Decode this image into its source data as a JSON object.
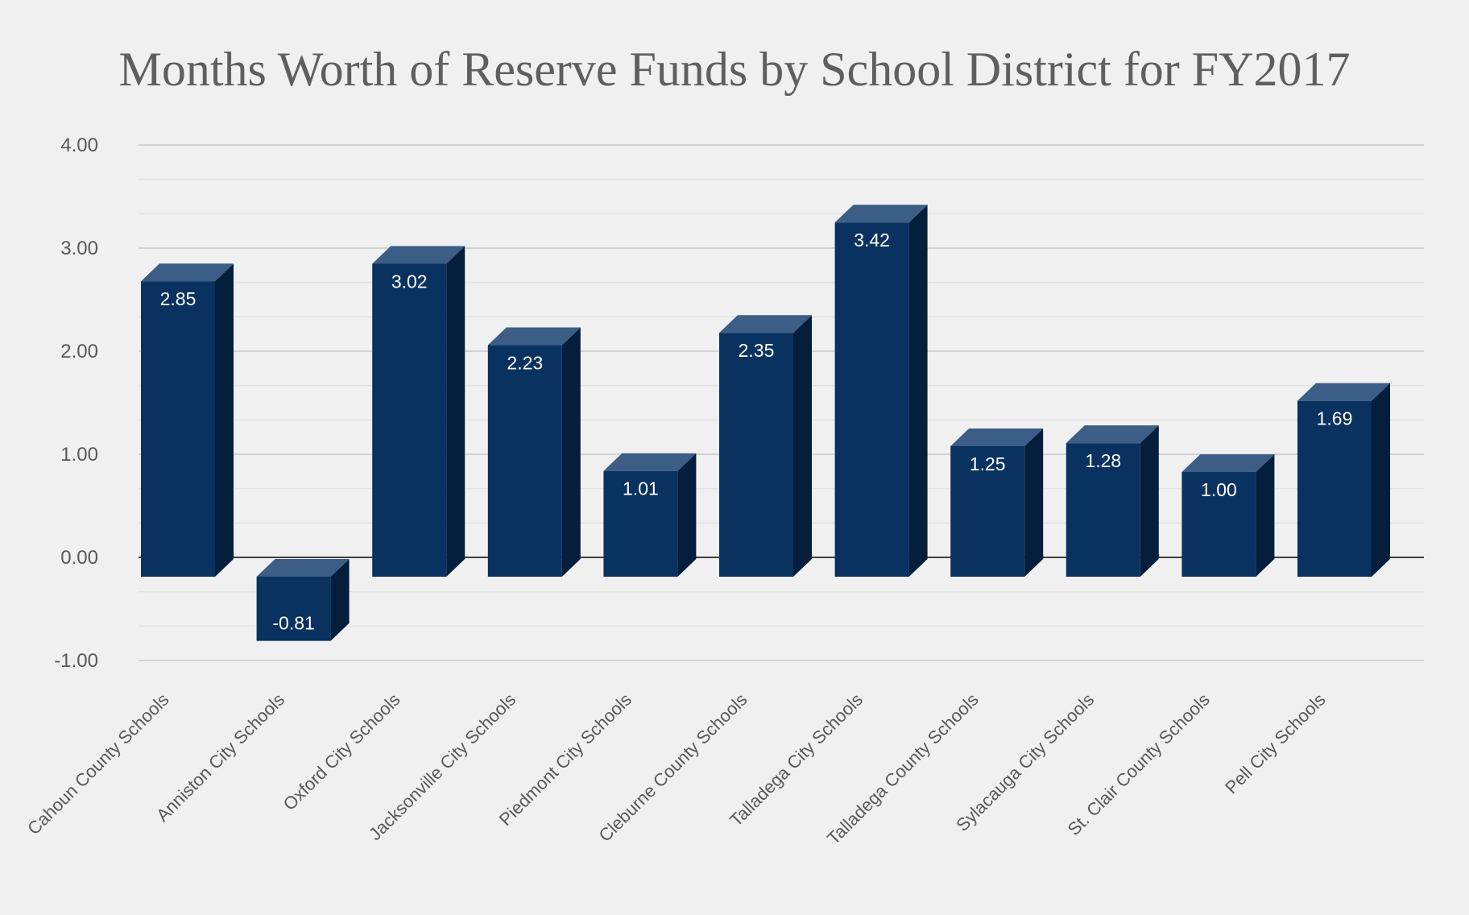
{
  "chart_data": {
    "type": "bar",
    "title": "Months Worth of Reserve Funds by School District for FY2017",
    "categories": [
      "Cahoun County Schools",
      "Anniston City Schools",
      "Oxford City Schools",
      "Jacksonville City Schools",
      "Piedmont City Schools",
      "Cleburne County Schools",
      "Talladega City Schools",
      "Talladega County Schools",
      "Sylacauga City Schools",
      "St. Clair  County Schools",
      "Pell City Schools"
    ],
    "values": [
      2.85,
      -0.81,
      3.02,
      2.23,
      1.01,
      2.35,
      3.42,
      1.25,
      1.28,
      1.0,
      1.69
    ],
    "data_labels": [
      "2.85",
      "-0.81",
      "3.02",
      "2.23",
      "1.01",
      "2.35",
      "3.42",
      "1.25",
      "1.28",
      "1.00",
      "1.69"
    ],
    "ylim": [
      -1,
      4
    ],
    "yticks": [
      4,
      3,
      2,
      1,
      0,
      -1
    ],
    "ytick_labels": [
      "4.00",
      "3.00",
      "2.00",
      "1.00",
      "0.00",
      "-1.00"
    ],
    "xlabel": "",
    "ylabel": "",
    "grid": true,
    "legend": "none",
    "bar_style": "3d",
    "colors": {
      "bar_front": "#0a3260",
      "bar_top": "#3b5d86",
      "bar_side": "#051e3b",
      "grid": "#d2d2d2",
      "zero_line": "#404040",
      "background": "#f0f0f0"
    }
  }
}
